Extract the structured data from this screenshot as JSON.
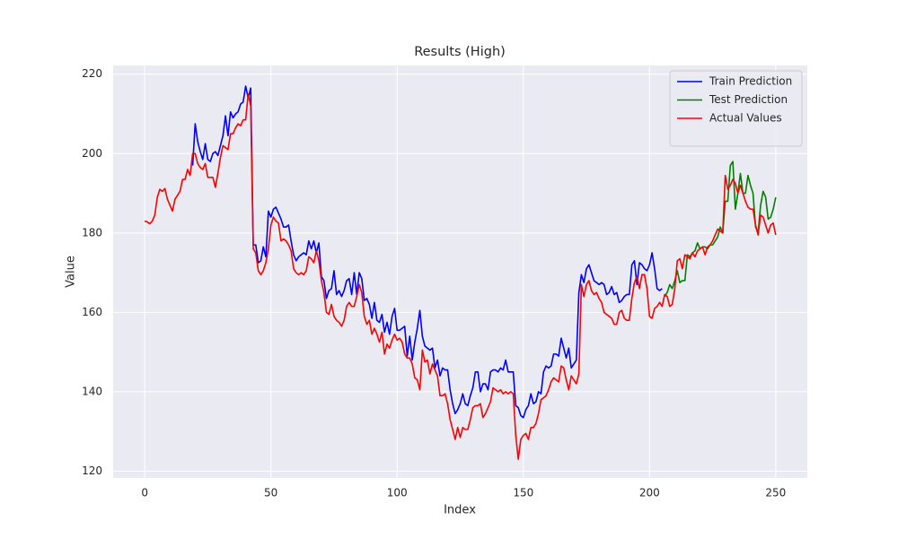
{
  "chart_data": {
    "type": "line",
    "title": "Results (High)",
    "x_label": "Index",
    "y_label": "Value",
    "xlim": [
      -12.5,
      262.5
    ],
    "ylim": [
      118.3,
      222.2
    ],
    "xticks": [
      0,
      50,
      100,
      150,
      200,
      250
    ],
    "yticks": [
      120,
      140,
      160,
      180,
      200,
      220
    ],
    "grid": true,
    "background": "#eaeaf2",
    "legend": "upper right",
    "x": [
      0,
      1,
      2,
      3,
      4,
      5,
      6,
      7,
      8,
      9,
      10,
      11,
      12,
      13,
      14,
      15,
      16,
      17,
      18,
      19,
      20,
      21,
      22,
      23,
      24,
      25,
      26,
      27,
      28,
      29,
      30,
      31,
      32,
      33,
      34,
      35,
      36,
      37,
      38,
      39,
      40,
      41,
      42,
      43,
      44,
      45,
      46,
      47,
      48,
      49,
      50,
      51,
      52,
      53,
      54,
      55,
      56,
      57,
      58,
      59,
      60,
      61,
      62,
      63,
      64,
      65,
      66,
      67,
      68,
      69,
      70,
      71,
      72,
      73,
      74,
      75,
      76,
      77,
      78,
      79,
      80,
      81,
      82,
      83,
      84,
      85,
      86,
      87,
      88,
      89,
      90,
      91,
      92,
      93,
      94,
      95,
      96,
      97,
      98,
      99,
      100,
      101,
      102,
      103,
      104,
      105,
      106,
      107,
      108,
      109,
      110,
      111,
      112,
      113,
      114,
      115,
      116,
      117,
      118,
      119,
      120,
      121,
      122,
      123,
      124,
      125,
      126,
      127,
      128,
      129,
      130,
      131,
      132,
      133,
      134,
      135,
      136,
      137,
      138,
      139,
      140,
      141,
      142,
      143,
      144,
      145,
      146,
      147,
      148,
      149,
      150,
      151,
      152,
      153,
      154,
      155,
      156,
      157,
      158,
      159,
      160,
      161,
      162,
      163,
      164,
      165,
      166,
      167,
      168,
      169,
      170,
      171,
      172,
      173,
      174,
      175,
      176,
      177,
      178,
      179,
      180,
      181,
      182,
      183,
      184,
      185,
      186,
      187,
      188,
      189,
      190,
      191,
      192,
      193,
      194,
      195,
      196,
      197,
      198,
      199,
      200,
      201,
      202,
      203,
      204,
      205,
      206,
      207,
      208,
      209,
      210,
      211,
      212,
      213,
      214,
      215,
      216,
      217,
      218,
      219,
      220,
      221,
      222,
      223,
      224,
      225,
      226,
      227,
      228,
      229,
      230,
      231,
      232,
      233,
      234,
      235,
      236,
      237,
      238,
      239,
      240,
      241,
      242,
      243,
      244,
      245,
      246,
      247,
      248,
      249,
      250
    ],
    "series": [
      {
        "name": "Train Prediction",
        "color": "#0000ff",
        "values": [
          null,
          null,
          null,
          null,
          null,
          null,
          null,
          null,
          null,
          null,
          null,
          null,
          null,
          null,
          null,
          null,
          null,
          null,
          null,
          197,
          207.5,
          203,
          200.5,
          198.5,
          202.5,
          198.5,
          198,
          200,
          200.5,
          199.5,
          202,
          204.5,
          209.5,
          204.5,
          210.5,
          209,
          210,
          210.5,
          212.5,
          213,
          217,
          214,
          216.5,
          177,
          177,
          172.5,
          173,
          176.5,
          174,
          185.5,
          184,
          186,
          186.5,
          185,
          183.5,
          181.5,
          181.5,
          182,
          178,
          174.5,
          173,
          174,
          174.5,
          175,
          174.5,
          178,
          176,
          178,
          175,
          177.5,
          169,
          168,
          163.5,
          165.5,
          166,
          170.5,
          164.5,
          165.5,
          164,
          165.5,
          168,
          168.5,
          164.5,
          170,
          164.5,
          170,
          168.5,
          163,
          163.5,
          162,
          158.5,
          162.5,
          158,
          157.5,
          159.5,
          155,
          157.5,
          154.5,
          159,
          161,
          155.5,
          155.5,
          156,
          156.5,
          149,
          154,
          148,
          152.5,
          156,
          160.5,
          154,
          151.5,
          151,
          150.5,
          151,
          146,
          148,
          144,
          146,
          145.5,
          145.5,
          140.5,
          137,
          134.5,
          135.5,
          137,
          139.5,
          137,
          136.5,
          139,
          141,
          145,
          145,
          140,
          142,
          142,
          140.5,
          145,
          145.5,
          145.5,
          145,
          146,
          145.5,
          148,
          145,
          145,
          145,
          136.5,
          136,
          134,
          133.5,
          135.5,
          136.5,
          139.5,
          137,
          137.5,
          140,
          139.5,
          145,
          146.5,
          146,
          146.5,
          149.5,
          149.5,
          149,
          153.5,
          151,
          148.5,
          151,
          146,
          147,
          148,
          165,
          169.5,
          167.5,
          171,
          172,
          170,
          168,
          167.5,
          167,
          167.5,
          167,
          164.5,
          165,
          166.5,
          164.5,
          165,
          162.5,
          163,
          164,
          164.5,
          164.5,
          172,
          173,
          167,
          172.5,
          172,
          171,
          170.5,
          172,
          175,
          171,
          166,
          165.5,
          166,
          null,
          null,
          null,
          null,
          null,
          null,
          null,
          null,
          null,
          null,
          null,
          null,
          null,
          null,
          null,
          null,
          null,
          null,
          null,
          null,
          null,
          null,
          null,
          null,
          null,
          null,
          null,
          null,
          null,
          null,
          null,
          null,
          null,
          null,
          null,
          null,
          null,
          null,
          null,
          null,
          null,
          null,
          null,
          null,
          null
        ]
      },
      {
        "name": "Test Prediction",
        "color": "#008000",
        "values": [
          null,
          null,
          null,
          null,
          null,
          null,
          null,
          null,
          null,
          null,
          null,
          null,
          null,
          null,
          null,
          null,
          null,
          null,
          null,
          null,
          null,
          null,
          null,
          null,
          null,
          null,
          null,
          null,
          null,
          null,
          null,
          null,
          null,
          null,
          null,
          null,
          null,
          null,
          null,
          null,
          null,
          null,
          null,
          null,
          null,
          null,
          null,
          null,
          null,
          null,
          null,
          null,
          null,
          null,
          null,
          null,
          null,
          null,
          null,
          null,
          null,
          null,
          null,
          null,
          null,
          null,
          null,
          null,
          null,
          null,
          null,
          null,
          null,
          null,
          null,
          null,
          null,
          null,
          null,
          null,
          null,
          null,
          null,
          null,
          null,
          null,
          null,
          null,
          null,
          null,
          null,
          null,
          null,
          null,
          null,
          null,
          null,
          null,
          null,
          null,
          null,
          null,
          null,
          null,
          null,
          null,
          null,
          null,
          null,
          null,
          null,
          null,
          null,
          null,
          null,
          null,
          null,
          null,
          null,
          null,
          null,
          null,
          null,
          null,
          null,
          null,
          null,
          null,
          null,
          null,
          null,
          null,
          null,
          null,
          null,
          null,
          null,
          null,
          null,
          null,
          null,
          null,
          null,
          null,
          null,
          null,
          null,
          null,
          null,
          null,
          null,
          null,
          null,
          null,
          null,
          null,
          null,
          null,
          null,
          null,
          null,
          null,
          null,
          null,
          null,
          null,
          null,
          null,
          null,
          null,
          null,
          null,
          null,
          null,
          null,
          null,
          null,
          null,
          null,
          null,
          null,
          null,
          null,
          null,
          null,
          null,
          null,
          null,
          null,
          null,
          null,
          null,
          null,
          null,
          null,
          null,
          null,
          null,
          null,
          null,
          null,
          null,
          null,
          null,
          null,
          null,
          164,
          165,
          167,
          166,
          168,
          170.5,
          167.5,
          168,
          168,
          174.5,
          174,
          175,
          175.5,
          177.5,
          176,
          176.5,
          176.5,
          176,
          177,
          177,
          178,
          179,
          181.5,
          180,
          188,
          188,
          197,
          198,
          186,
          190,
          195,
          190,
          190,
          194.5,
          192,
          190,
          181.5,
          180,
          187,
          190.5,
          189,
          183.5,
          184,
          186,
          189
        ]
      },
      {
        "name": "Actual Values",
        "color": "#ff0000",
        "values": [
          183,
          182.8,
          182.3,
          183,
          184.5,
          189,
          191,
          190.5,
          191.2,
          188.5,
          187,
          185.5,
          188.5,
          189.5,
          190.5,
          193.5,
          193.5,
          196,
          194.5,
          200,
          200,
          197.5,
          196.5,
          196,
          197.5,
          194,
          194,
          194,
          191.5,
          195,
          199,
          202,
          201.5,
          201,
          205,
          205,
          206.5,
          207.5,
          207,
          208.5,
          208.5,
          215,
          212,
          176,
          175,
          170.5,
          169.5,
          170.5,
          172.5,
          176,
          182,
          184,
          183,
          182.5,
          178,
          178.5,
          178,
          177,
          175.5,
          171,
          170,
          169.5,
          170,
          169.5,
          170.5,
          174,
          173.5,
          172.5,
          175.5,
          173,
          168,
          165,
          160,
          159.5,
          162,
          159,
          158,
          157.5,
          156.5,
          158,
          161.5,
          162.5,
          161.5,
          161.5,
          164,
          167,
          165,
          159,
          157,
          158,
          154.5,
          156,
          154.5,
          152.5,
          155,
          149.5,
          152,
          151,
          153,
          154.5,
          153,
          153.5,
          152.5,
          149.5,
          148.5,
          148.5,
          147,
          143.5,
          143,
          140.5,
          150.5,
          147.5,
          148,
          144.5,
          147,
          145.5,
          144,
          139,
          139,
          139.5,
          137,
          133,
          130.5,
          128,
          131,
          128.5,
          131,
          130.5,
          130.5,
          133,
          136,
          136.5,
          136.5,
          137,
          133.5,
          134.5,
          136,
          137.5,
          141,
          140.5,
          140,
          140.5,
          139.5,
          140,
          139.5,
          140,
          139.5,
          129,
          123,
          128,
          129,
          129.5,
          128,
          131,
          131,
          132,
          134.5,
          138,
          138.5,
          139,
          140.5,
          142.5,
          143.5,
          143,
          142.5,
          146.5,
          146,
          143,
          140.5,
          144,
          143,
          142,
          144.5,
          167,
          164,
          167,
          168,
          165.5,
          164.5,
          165,
          163.5,
          162.5,
          160,
          159.5,
          159,
          158.5,
          157,
          157,
          160,
          160.5,
          158.5,
          158,
          158,
          163.5,
          167.5,
          169,
          166,
          169.5,
          169.5,
          166,
          159,
          158.5,
          161,
          161.5,
          162.5,
          161.5,
          164.5,
          164,
          161.5,
          162,
          166,
          173,
          173.5,
          171,
          174.5,
          174,
          173.5,
          175,
          174,
          175.5,
          176,
          176.5,
          174.5,
          176.5,
          177,
          178,
          179.5,
          181,
          180.5,
          180,
          194.5,
          191,
          192,
          193.5,
          192.5,
          190,
          192,
          190,
          188,
          186.5,
          186,
          186,
          182,
          179.5,
          184.5,
          184,
          182,
          180,
          182,
          182.5,
          179.5
        ]
      }
    ]
  }
}
